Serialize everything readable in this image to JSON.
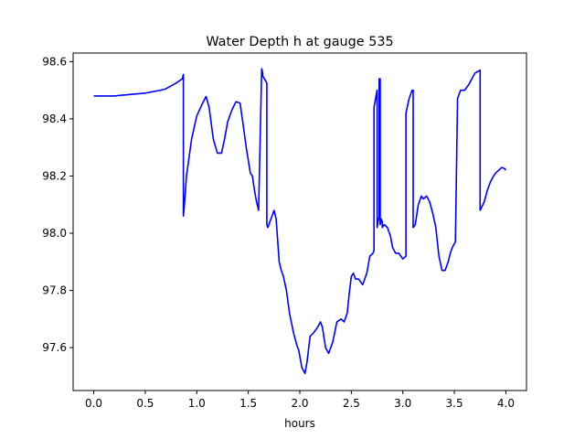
{
  "chart_data": {
    "type": "line",
    "title": "Water Depth h at gauge 535",
    "xlabel": "hours",
    "ylabel": "",
    "xlim": [
      -0.2,
      4.2
    ],
    "ylim": [
      97.45,
      98.63
    ],
    "grid": false,
    "xticks": [
      0.0,
      0.5,
      1.0,
      1.5,
      2.0,
      2.5,
      3.0,
      3.5,
      4.0
    ],
    "xtick_labels": [
      "0.0",
      "0.5",
      "1.0",
      "1.5",
      "2.0",
      "2.5",
      "3.0",
      "3.5",
      "4.0"
    ],
    "yticks": [
      97.6,
      97.8,
      98.0,
      98.2,
      98.4,
      98.6
    ],
    "ytick_labels": [
      "97.6",
      "97.8",
      "98.0",
      "98.2",
      "98.4",
      "98.6"
    ],
    "series": [
      {
        "color": "#0000ff",
        "x": [
          0.0,
          0.2,
          0.35,
          0.5,
          0.65,
          0.7,
          0.8,
          0.86,
          0.87,
          0.87,
          0.88,
          0.9,
          0.95,
          1.0,
          1.05,
          1.09,
          1.12,
          1.16,
          1.2,
          1.24,
          1.27,
          1.3,
          1.34,
          1.38,
          1.42,
          1.45,
          1.48,
          1.52,
          1.54,
          1.56,
          1.58,
          1.6,
          1.63,
          1.64,
          1.64,
          1.68,
          1.68,
          1.69,
          1.72,
          1.75,
          1.77,
          1.79,
          1.8,
          1.82,
          1.84,
          1.87,
          1.9,
          1.94,
          1.97,
          1.99,
          2.02,
          2.05,
          2.07,
          2.1,
          2.13,
          2.17,
          2.2,
          2.22,
          2.25,
          2.28,
          2.32,
          2.36,
          2.4,
          2.43,
          2.46,
          2.48,
          2.5,
          2.52,
          2.54,
          2.57,
          2.61,
          2.65,
          2.68,
          2.71,
          2.72,
          2.72,
          2.75,
          2.75,
          2.76,
          2.77,
          2.77,
          2.78,
          2.78,
          2.79,
          2.8,
          2.8,
          2.82,
          2.85,
          2.88,
          2.9,
          2.93,
          2.96,
          3.0,
          3.03,
          3.03,
          3.06,
          3.09,
          3.1,
          3.1,
          3.12,
          3.15,
          3.18,
          3.2,
          3.23,
          3.26,
          3.29,
          3.32,
          3.35,
          3.38,
          3.41,
          3.44,
          3.46,
          3.48,
          3.51,
          3.53,
          3.53,
          3.56,
          3.6,
          3.64,
          3.67,
          3.7,
          3.75,
          3.75,
          3.79,
          3.82,
          3.85,
          3.88,
          3.9,
          3.93,
          3.96,
          3.99,
          4.0
        ],
        "y": [
          98.48,
          98.48,
          98.485,
          98.49,
          98.5,
          98.505,
          98.525,
          98.54,
          98.555,
          98.06,
          98.1,
          98.2,
          98.33,
          98.41,
          98.45,
          98.478,
          98.44,
          98.33,
          98.28,
          98.28,
          98.33,
          98.39,
          98.43,
          98.46,
          98.455,
          98.38,
          98.3,
          98.21,
          98.2,
          98.15,
          98.11,
          98.08,
          98.575,
          98.56,
          98.55,
          98.525,
          98.03,
          98.02,
          98.05,
          98.08,
          98.05,
          97.95,
          97.9,
          97.87,
          97.85,
          97.8,
          97.72,
          97.65,
          97.61,
          97.59,
          97.53,
          97.51,
          97.55,
          97.64,
          97.65,
          97.67,
          97.69,
          97.67,
          97.6,
          97.58,
          97.62,
          97.69,
          97.7,
          97.69,
          97.72,
          97.79,
          97.85,
          97.86,
          97.84,
          97.84,
          97.82,
          97.86,
          97.92,
          97.93,
          97.94,
          98.44,
          98.5,
          98.02,
          98.04,
          98.06,
          98.54,
          98.54,
          98.03,
          98.05,
          98.04,
          98.02,
          98.03,
          98.02,
          97.99,
          97.95,
          97.93,
          97.93,
          97.91,
          97.92,
          98.42,
          98.47,
          98.5,
          98.5,
          98.02,
          98.03,
          98.1,
          98.13,
          98.12,
          98.13,
          98.11,
          98.07,
          98.02,
          97.92,
          97.87,
          97.87,
          97.9,
          97.93,
          97.95,
          97.97,
          98.45,
          98.47,
          98.5,
          98.5,
          98.52,
          98.54,
          98.56,
          98.57,
          98.08,
          98.11,
          98.15,
          98.18,
          98.2,
          98.21,
          98.22,
          98.23,
          98.225,
          98.22
        ]
      }
    ]
  }
}
